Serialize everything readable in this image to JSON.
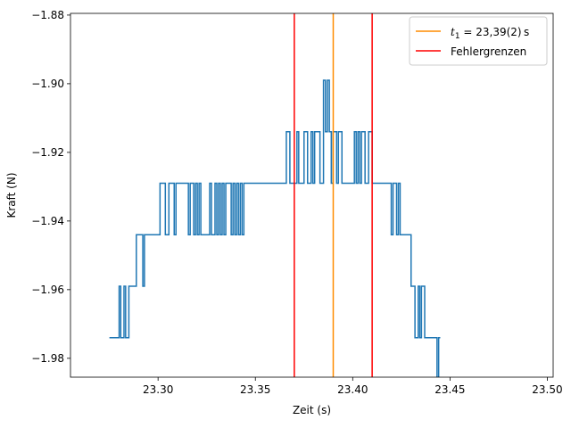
{
  "chart_data": {
    "type": "line",
    "title": "",
    "xlabel": "Zeit (s)",
    "ylabel": "Kraft (N)",
    "xlim": [
      23.255,
      23.503
    ],
    "ylim": [
      -1.9855,
      -1.8795
    ],
    "xticks": [
      "23.30",
      "23.35",
      "23.40",
      "23.45",
      "23.50"
    ],
    "xtick_values": [
      23.3,
      23.35,
      23.4,
      23.45,
      23.5
    ],
    "yticks": [
      "−1.98",
      "−1.96",
      "−1.94",
      "−1.92",
      "−1.90",
      "−1.88"
    ],
    "ytick_values": [
      -1.98,
      -1.96,
      -1.94,
      -1.92,
      -1.9,
      -1.88
    ],
    "grid": false,
    "legend_position": "top-right",
    "legend": [
      {
        "label_prefix": "t",
        "label_sub": "1",
        "label_rest": " = 23,39(2) s",
        "color": "#ff8c00"
      },
      {
        "label": "Fehlergrenzen",
        "color": "#ff0000"
      }
    ],
    "vlines": [
      {
        "x": 23.39,
        "color": "#ff8c00",
        "role": "t1"
      },
      {
        "x": 23.37,
        "color": "#ff0000",
        "role": "error-lower"
      },
      {
        "x": 23.41,
        "color": "#ff0000",
        "role": "error-upper"
      }
    ],
    "series": [
      {
        "color": "#1f77b4",
        "levels": [
          -1.99,
          -1.974,
          -1.959,
          -1.944,
          -1.929,
          -1.914,
          -1.899
        ],
        "segments": [
          {
            "x0": 23.275,
            "x1": 23.277,
            "lo": -1.99,
            "hi": -1.974
          },
          {
            "x0": 23.277,
            "x1": 23.28,
            "lo": -1.974,
            "hi": -1.974
          },
          {
            "x0": 23.28,
            "x1": 23.285,
            "lo": -1.974,
            "hi": -1.959
          },
          {
            "x0": 23.285,
            "x1": 23.288,
            "lo": -1.959,
            "hi": -1.959
          },
          {
            "x0": 23.288,
            "x1": 23.293,
            "lo": -1.959,
            "hi": -1.944
          },
          {
            "x0": 23.293,
            "x1": 23.301,
            "lo": -1.944,
            "hi": -1.944
          },
          {
            "x0": 23.301,
            "x1": 23.332,
            "lo": -1.944,
            "hi": -1.929
          },
          {
            "x0": 23.332,
            "x1": 23.345,
            "lo": -1.944,
            "hi": -1.929
          },
          {
            "x0": 23.345,
            "x1": 23.365,
            "lo": -1.929,
            "hi": -1.929
          },
          {
            "x0": 23.365,
            "x1": 23.385,
            "lo": -1.929,
            "hi": -1.914
          },
          {
            "x0": 23.385,
            "x1": 23.389,
            "lo": -1.914,
            "hi": -1.899
          },
          {
            "x0": 23.389,
            "x1": 23.41,
            "lo": -1.929,
            "hi": -1.914
          },
          {
            "x0": 23.41,
            "x1": 23.418,
            "lo": -1.929,
            "hi": -1.929
          },
          {
            "x0": 23.418,
            "x1": 23.428,
            "lo": -1.944,
            "hi": -1.929
          },
          {
            "x0": 23.428,
            "x1": 23.432,
            "lo": -1.959,
            "hi": -1.944
          },
          {
            "x0": 23.432,
            "x1": 23.437,
            "lo": -1.974,
            "hi": -1.959
          },
          {
            "x0": 23.437,
            "x1": 23.44,
            "lo": -1.974,
            "hi": -1.974
          },
          {
            "x0": 23.44,
            "x1": 23.445,
            "lo": -1.99,
            "hi": -1.974
          }
        ]
      }
    ]
  }
}
